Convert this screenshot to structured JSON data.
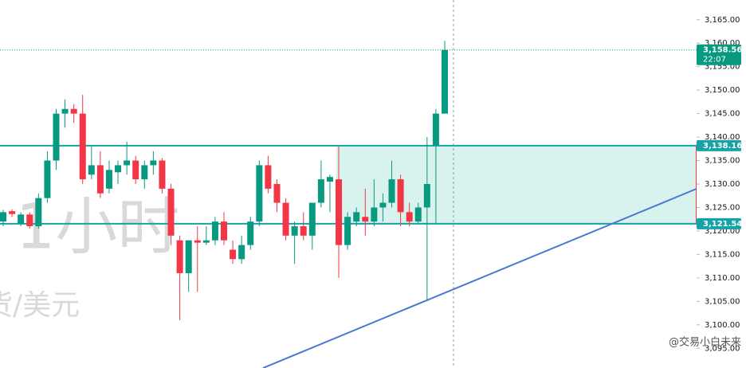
{
  "chart_data": {
    "type": "candlestick",
    "watermark": [
      ", 1小时",
      "货/美元"
    ],
    "credit": "@交易小白未来",
    "up_color": "#089981",
    "down_color": "#f23645",
    "ylim": [
      3090.8,
      3169.2
    ],
    "yticks": [
      {
        "value": 3095,
        "label": "3,095.00"
      },
      {
        "value": 3100,
        "label": "3,100.00"
      },
      {
        "value": 3105,
        "label": "3,105.00"
      },
      {
        "value": 3110,
        "label": "3,110.00"
      },
      {
        "value": 3115,
        "label": "3,115.00"
      },
      {
        "value": 3120,
        "label": "3,120.00"
      },
      {
        "value": 3125,
        "label": "3,125.00"
      },
      {
        "value": 3130,
        "label": "3,130.00"
      },
      {
        "value": 3135,
        "label": "3,135.00"
      },
      {
        "value": 3140,
        "label": "3,140.00"
      },
      {
        "value": 3145,
        "label": "3,145.00"
      },
      {
        "value": 3150,
        "label": "3,150.00"
      },
      {
        "value": 3155,
        "label": "3,155.00"
      },
      {
        "value": 3160,
        "label": "3,160.00"
      },
      {
        "value": 3165,
        "label": "3,165.00"
      }
    ],
    "last_price": {
      "value": 3158.56,
      "label": "3,158.56",
      "countdown": "22:07"
    },
    "levels": [
      {
        "value": 3138.16,
        "label": "3,138.16"
      },
      {
        "value": 3121.54,
        "label": "3,121.54"
      }
    ],
    "open": [
      3122,
      3124.2,
      3121.5,
      3123.5,
      3121,
      3127,
      3135,
      3145,
      3146,
      3145,
      3132,
      3134,
      3129,
      3132.5,
      3134,
      3135,
      3131,
      3134,
      3135,
      3129,
      3118,
      3111,
      3118,
      3117.5,
      3118,
      3122,
      3116,
      3114,
      3117,
      3122,
      3134,
      3130,
      3126,
      3119,
      3121,
      3119,
      3126,
      3130.5,
      3131,
      3117,
      3122,
      3123,
      3122,
      3125,
      3126,
      3131,
      3124,
      3122,
      3125,
      3138.16,
      3145
    ],
    "high": [
      3124.5,
      3124.6,
      3124,
      3124,
      3128,
      3137,
      3146,
      3148,
      3147,
      3149,
      3138,
      3137,
      3135,
      3135,
      3139,
      3136,
      3135,
      3137,
      3135.5,
      3130,
      3119,
      3118,
      3121,
      3121,
      3123,
      3124,
      3118,
      3119,
      3123,
      3135,
      3136,
      3131,
      3127,
      3122,
      3124,
      3126,
      3135,
      3132,
      3138,
      3124,
      3125,
      3129,
      3131,
      3128,
      3135,
      3132,
      3126,
      3126,
      3140,
      3146,
      3160.5
    ],
    "low": [
      3121,
      3123,
      3121,
      3120.5,
      3120.5,
      3126,
      3133,
      3142,
      3143,
      3130,
      3131,
      3127,
      3128,
      3130,
      3132,
      3130,
      3129,
      3132,
      3128,
      3117,
      3101,
      3107,
      3107,
      3117,
      3117,
      3117,
      3113,
      3113,
      3116,
      3121,
      3128,
      3124,
      3118,
      3113,
      3118,
      3116,
      3125,
      3124,
      3110,
      3116,
      3121,
      3119,
      3121,
      3122,
      3125,
      3121,
      3121,
      3121.5,
      3105,
      3121.54,
      3145
    ],
    "close": [
      3124,
      3123.6,
      3123.5,
      3121,
      3127,
      3135,
      3145,
      3146,
      3145,
      3131,
      3134,
      3128,
      3133,
      3134,
      3135,
      3131,
      3134,
      3135,
      3129,
      3119,
      3111,
      3118,
      3117.5,
      3118,
      3122,
      3118,
      3114,
      3117,
      3122,
      3134,
      3129,
      3126,
      3119,
      3121,
      3119,
      3126,
      3131,
      3131.5,
      3117,
      3123,
      3124,
      3122,
      3125,
      3126,
      3131,
      3124,
      3122,
      3125,
      3130,
      3145,
      3158.56
    ]
  }
}
